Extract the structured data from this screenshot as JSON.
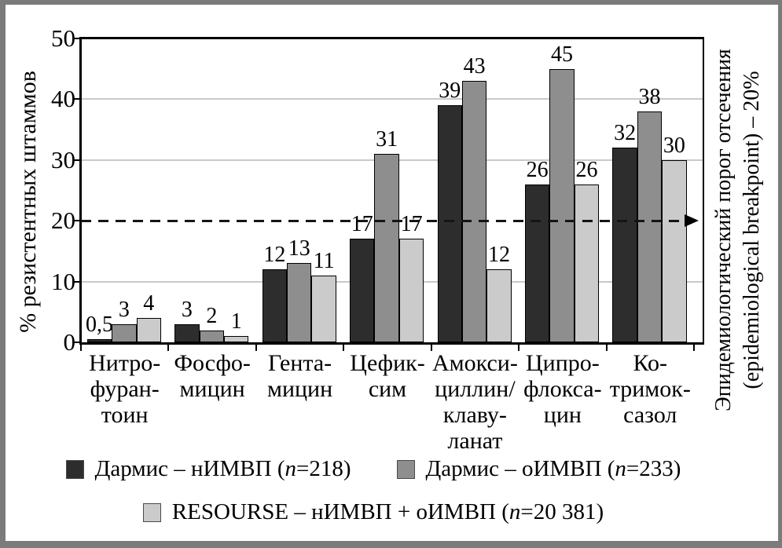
{
  "figure": {
    "background": "#ffffff",
    "frame_color": "#7b7b7b",
    "grid_color": "#c9c9c9"
  },
  "chart_data": {
    "type": "bar",
    "title": "",
    "ylabel": "% резистентных штаммов",
    "xlabel": "",
    "ylim": [
      0,
      50
    ],
    "yticks": [
      "0",
      "10",
      "20",
      "30",
      "40",
      "50"
    ],
    "ytick_values": [
      0,
      10,
      20,
      30,
      40,
      50
    ],
    "gridlines": [
      10,
      30,
      40
    ],
    "grid_on": true,
    "legend_position": "bottom",
    "threshold": {
      "value": 20,
      "style": "dashed-arrow-right",
      "label_line1": "Эпидемиологический порог отсечения",
      "label_line2": "(epidemiological breakpoint) – 20%"
    },
    "category_names": [
      "Нитрофурантоин",
      "Фосфомицин",
      "Гентамицин",
      "Цефиксим",
      "Амоксициллин/клавуланат",
      "Ципрофлоксацин",
      "Ко-тримоксазол"
    ],
    "categories_display": [
      [
        "Нитро-",
        "фуран-",
        "тоин"
      ],
      [
        "Фосфо-",
        "мицин"
      ],
      [
        "Гента-",
        "мицин"
      ],
      [
        "Цефик-",
        "сим"
      ],
      [
        "Амокси-",
        "циллин/",
        "клаву-",
        "ланат"
      ],
      [
        "Ципро-",
        "флокса-",
        "цин"
      ],
      [
        "Ко-",
        "тримок-",
        "сазол"
      ]
    ],
    "series": [
      {
        "name": "Дармис – нИМВП (n=218)",
        "legend_pre": "Дармис – нИМВП (",
        "legend_n": "n",
        "legend_post": "=218)",
        "color": "#2d2d2d",
        "values": [
          0.5,
          3,
          12,
          17,
          39,
          26,
          32
        ],
        "labels": [
          "0,5",
          "3",
          "12",
          "17",
          "39",
          "26",
          "32"
        ]
      },
      {
        "name": "Дармис – оИМВП (n=233)",
        "legend_pre": "Дармис – оИМВП (",
        "legend_n": "n",
        "legend_post": "=233)",
        "color": "#8e8e8e",
        "values": [
          3,
          2,
          13,
          31,
          43,
          45,
          38
        ],
        "labels": [
          "3",
          "2",
          "13",
          "31",
          "43",
          "45",
          "38"
        ]
      },
      {
        "name": "RESOURSE – нИМВП + оИМВП (n=20 381)",
        "legend_pre": "RESOURSE – нИМВП + оИМВП (",
        "legend_n": "n",
        "legend_post": "=20 381)",
        "color": "#cbcbcb",
        "values": [
          4,
          1,
          11,
          17,
          12,
          26,
          30
        ],
        "labels": [
          "4",
          "1",
          "11",
          "17",
          "12",
          "26",
          "30"
        ]
      }
    ],
    "legend_rows": [
      [
        0,
        1
      ],
      [
        2
      ]
    ]
  }
}
